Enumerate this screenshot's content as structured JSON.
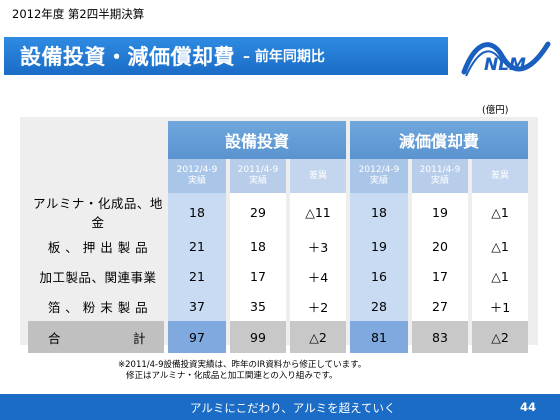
{
  "header": {
    "period": "2012年度 第2四半期決算",
    "title": "設備投資・減価償却費",
    "subtitle": "– 前年同期比"
  },
  "logo": {
    "text": "NLM"
  },
  "unit": "(億円)",
  "table": {
    "groups": [
      "設備投資",
      "減価償却費"
    ],
    "subheaders": {
      "cur_line1": "2012/4-9",
      "cur_line2": "実績",
      "prv_line1": "2011/4-9",
      "prv_line2": "実績",
      "diff": "差異"
    },
    "rows": [
      {
        "label": "アルミナ・化成品、地金",
        "capex": [
          "18",
          "29",
          "△11"
        ],
        "dep": [
          "18",
          "19",
          "△1"
        ]
      },
      {
        "label": "板 、 押 出 製 品",
        "capex": [
          "21",
          "18",
          "＋3"
        ],
        "dep": [
          "19",
          "20",
          "△1"
        ]
      },
      {
        "label": "加工製品、関連事業",
        "capex": [
          "21",
          "17",
          "＋4"
        ],
        "dep": [
          "16",
          "17",
          "△1"
        ]
      },
      {
        "label": "箔 、 粉 末 製 品",
        "capex": [
          "37",
          "35",
          "＋2"
        ],
        "dep": [
          "28",
          "27",
          "＋1"
        ]
      }
    ],
    "total": {
      "label_left": "合",
      "label_right": "計",
      "capex": [
        "97",
        "99",
        "△2"
      ],
      "dep": [
        "81",
        "83",
        "△2"
      ]
    }
  },
  "note": {
    "line1": "※2011/4-9設備投資実績は、昨年のIR資料から修正しています。",
    "line2": "修正はアルミナ・化成品と加工関連との入り組みです。"
  },
  "footer": {
    "slogan": "アルミにこだわり、アルミを超えていく",
    "page": "44"
  },
  "colors": {
    "brand_blue": "#1a6cc6",
    "header_blue": "#5a93cf",
    "cell_blue": "#c9dbf2"
  }
}
